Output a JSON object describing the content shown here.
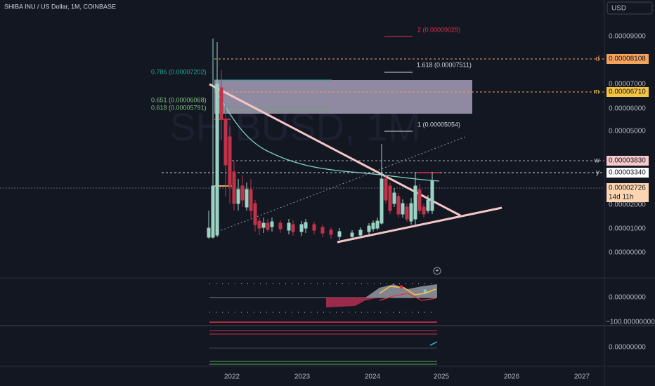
{
  "header": {
    "title": "SHIBA INU / US Dollar, 1M, COINBASE"
  },
  "price_axis": {
    "currency": "USD",
    "labels": [
      "0.00009000",
      "0.00007000",
      "0.00006000",
      "0.00005000",
      "0.00002000",
      "0.00001000",
      "0.00000000"
    ]
  },
  "badges": [
    {
      "key": "d",
      "price": "0.00008108"
    },
    {
      "key": "m",
      "price": "0.00006710"
    },
    {
      "key": "w",
      "price": "0.00003830"
    },
    {
      "key": "y",
      "price": "0.00003340"
    }
  ],
  "last_price": {
    "price": "0.00002726",
    "countdown": "14d 11h"
  },
  "fib_levels": [
    "2 (0.00009029)",
    "1.618 (0.00007511)",
    "1 (0.00005054)",
    "0.786 (0.00007202)",
    "0.651 (0.00006068)",
    "0.618 (0.00005791)"
  ],
  "indicator_axis": [
    "0.00000000",
    "−100.00000000",
    "0.00000000"
  ],
  "time_axis": [
    "2022",
    "2023",
    "2024",
    "2025",
    "2026",
    "2027"
  ]
}
